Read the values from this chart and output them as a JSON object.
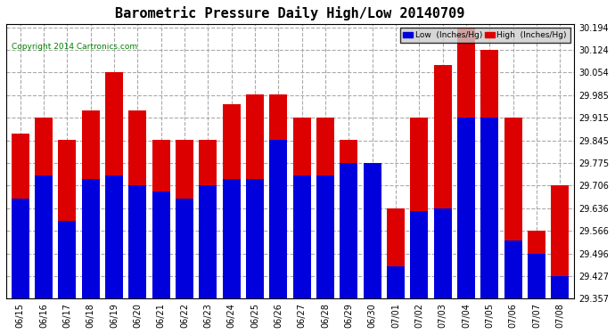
{
  "title": "Barometric Pressure Daily High/Low 20140709",
  "copyright": "Copyright 2014 Cartronics.com",
  "legend_low": "Low  (Inches/Hg)",
  "legend_high": "High  (Inches/Hg)",
  "dates": [
    "06/15",
    "06/16",
    "06/17",
    "06/18",
    "06/19",
    "06/20",
    "06/21",
    "06/22",
    "06/23",
    "06/24",
    "06/25",
    "06/26",
    "06/27",
    "06/28",
    "06/29",
    "06/30",
    "07/01",
    "07/02",
    "07/03",
    "07/04",
    "07/05",
    "07/06",
    "07/07",
    "07/08"
  ],
  "low": [
    29.666,
    29.736,
    29.596,
    29.726,
    29.736,
    29.706,
    29.686,
    29.666,
    29.706,
    29.726,
    29.726,
    29.846,
    29.736,
    29.736,
    29.776,
    29.776,
    29.456,
    29.626,
    29.636,
    29.916,
    29.916,
    29.536,
    29.496,
    29.427
  ],
  "high": [
    29.866,
    29.916,
    29.846,
    29.936,
    30.056,
    29.936,
    29.846,
    29.846,
    29.846,
    29.956,
    29.986,
    29.986,
    29.916,
    29.916,
    29.846,
    29.776,
    29.636,
    29.916,
    30.076,
    30.194,
    30.124,
    29.916,
    29.566,
    29.706
  ],
  "ylim_min": 29.357,
  "ylim_max": 30.204,
  "yticks": [
    29.357,
    29.427,
    29.496,
    29.566,
    29.636,
    29.706,
    29.775,
    29.845,
    29.915,
    29.985,
    30.054,
    30.124,
    30.194
  ],
  "bar_width": 0.38,
  "low_color": "#0000dd",
  "high_color": "#dd0000",
  "bg_color": "#ffffff",
  "grid_color": "#aaaaaa",
  "title_fontsize": 11,
  "tick_fontsize": 7,
  "copyright_fontsize": 6.5
}
